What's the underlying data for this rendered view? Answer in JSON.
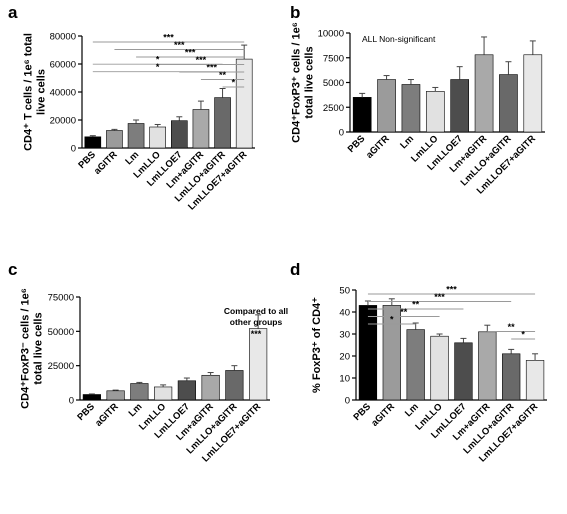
{
  "colors": {
    "PBS": "#000000",
    "aGITR": "#9b9b9b",
    "Lm": "#7d7d7d",
    "LmLLO": "#e1e1e1",
    "LmLLOE7": "#4d4d4d",
    "Lm+aGITR": "#a9a9a9",
    "LmLLO+aGITR": "#696969",
    "LmLLOE7+aGITR": "#e8e8e8"
  },
  "chart_data": [
    {
      "panel": "a",
      "type": "bar",
      "ylabel_lines": [
        "CD4⁺ T cells / 1e⁶ total",
        "live cells"
      ],
      "categories": [
        "PBS",
        "aGITR",
        "Lm",
        "LmLLO",
        "LmLLOE7",
        "Lm+aGITR",
        "LmLLO+aGITR",
        "LmLLOE7+aGITR"
      ],
      "values": [
        8000,
        12500,
        17500,
        15000,
        19500,
        27500,
        36000,
        63500
      ],
      "errors": [
        800,
        800,
        2500,
        1800,
        2800,
        6000,
        6500,
        10000
      ],
      "ylim": [
        0,
        80000
      ],
      "yticks": [
        0,
        20000,
        40000,
        60000,
        80000
      ],
      "significance": [
        {
          "from": 0,
          "to": 7,
          "label": "***"
        },
        {
          "from": 1,
          "to": 7,
          "label": "***"
        },
        {
          "from": 2,
          "to": 7,
          "label": "***"
        },
        {
          "from": 3,
          "to": 7,
          "label": "***"
        },
        {
          "from": 4,
          "to": 7,
          "label": "***"
        },
        {
          "from": 5,
          "to": 7,
          "label": "**"
        },
        {
          "from": 6,
          "to": 7,
          "label": "*"
        },
        {
          "from": 0,
          "to": 6,
          "label": "*"
        },
        {
          "from": 0,
          "to": 6,
          "label": "*"
        }
      ]
    },
    {
      "panel": "b",
      "type": "bar",
      "ylabel_lines": [
        "CD4⁺FoxP3⁺ cells / 1e⁶",
        "total live cells"
      ],
      "note": "ALL Non-significant",
      "categories": [
        "PBS",
        "aGITR",
        "Lm",
        "LmLLO",
        "LmLLOE7",
        "Lm+aGITR",
        "LmLLO+aGITR",
        "LmLLOE7+aGITR"
      ],
      "values": [
        3500,
        5300,
        4800,
        4100,
        5300,
        7800,
        5800,
        7800
      ],
      "errors": [
        400,
        400,
        500,
        400,
        1300,
        1800,
        1300,
        1400
      ],
      "ylim": [
        0,
        10000
      ],
      "yticks": [
        0,
        2500,
        5000,
        7500,
        10000
      ]
    },
    {
      "panel": "c",
      "type": "bar",
      "ylabel_lines": [
        "CD4⁺FoxP3⁻ cells / 1e⁶",
        "total live cells"
      ],
      "note_lines": [
        "Compared to all",
        "other groups"
      ],
      "note_stars": "***",
      "categories": [
        "PBS",
        "aGITR",
        "Lm",
        "LmLLO",
        "LmLLOE7",
        "Lm+aGITR",
        "LmLLO+aGITR",
        "LmLLOE7+aGITR"
      ],
      "values": [
        4000,
        6700,
        12000,
        9500,
        14000,
        18000,
        21500,
        52000
      ],
      "errors": [
        400,
        500,
        800,
        1500,
        2000,
        2000,
        3500,
        10000
      ],
      "ylim": [
        0,
        75000
      ],
      "yticks": [
        0,
        25000,
        50000,
        75000
      ]
    },
    {
      "panel": "d",
      "type": "bar",
      "ylabel_lines": [
        "% FoxP3⁺ of CD4⁺"
      ],
      "categories": [
        "PBS",
        "aGITR",
        "Lm",
        "LmLLO",
        "LmLLOE7",
        "Lm+aGITR",
        "LmLLO+aGITR",
        "LmLLOE7+aGITR"
      ],
      "values": [
        43,
        43,
        32,
        29,
        26,
        31,
        21,
        18
      ],
      "errors": [
        2,
        3,
        3,
        1,
        2,
        3,
        2,
        3
      ],
      "ylim": [
        0,
        50
      ],
      "yticks": [
        0,
        10,
        20,
        30,
        40,
        50
      ],
      "significance": [
        {
          "from": 0,
          "to": 7,
          "label": "***"
        },
        {
          "from": 0,
          "to": 6,
          "label": "***"
        },
        {
          "from": 0,
          "to": 4,
          "label": "**"
        },
        {
          "from": 0,
          "to": 3,
          "label": "**"
        },
        {
          "from": 0,
          "to": 2,
          "label": "*"
        },
        {
          "from": 5,
          "to": 7,
          "label": "**"
        },
        {
          "from": 6,
          "to": 7,
          "label": "*"
        }
      ]
    }
  ]
}
